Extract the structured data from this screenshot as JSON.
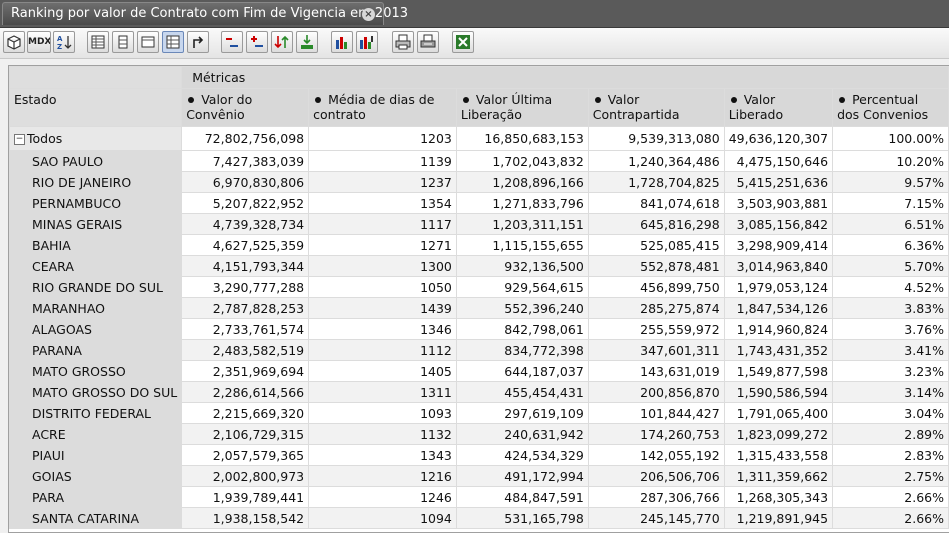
{
  "tab": {
    "title": "Ranking por valor de Contrato com Fim de Vigencia em 2013",
    "close_glyph": "×"
  },
  "toolbar": {
    "buttons": [
      {
        "name": "cube-icon",
        "label": ""
      },
      {
        "name": "mdx-button",
        "label": "MDX"
      },
      {
        "name": "sort-az-icon",
        "label": ""
      },
      {
        "name": "non-empty-icon",
        "label": ""
      },
      {
        "name": "swap-axes-icon",
        "label": ""
      },
      {
        "name": "hide-spans-icon",
        "label": ""
      },
      {
        "name": "show-properties-icon",
        "label": ""
      },
      {
        "name": "drill-through-icon",
        "label": ""
      },
      {
        "name": "drill-member-icon",
        "label": ""
      },
      {
        "name": "drill-position-icon",
        "label": ""
      },
      {
        "name": "drill-replace-icon",
        "label": ""
      },
      {
        "name": "drill-down-icon",
        "label": ""
      },
      {
        "name": "bar-chart-icon",
        "label": ""
      },
      {
        "name": "chart-config-icon",
        "label": ""
      },
      {
        "name": "print-icon",
        "label": ""
      },
      {
        "name": "print-setup-icon",
        "label": ""
      },
      {
        "name": "excel-export-icon",
        "label": ""
      }
    ]
  },
  "grid": {
    "metrics_label": "Métricas",
    "row_header_label": "Estado",
    "columns": [
      "Valor do Convênio",
      "Média de dias de contrato",
      "Valor Última Liberação",
      "Valor Contrapartida",
      "Valor Liberado",
      "Percentual dos Convenios"
    ],
    "total": {
      "label": "Todos",
      "collapse_glyph": "−",
      "values": [
        "72,802,756,098",
        "1203",
        "16,850,683,153",
        "9,539,313,080",
        "49,636,120,307",
        "100.00%"
      ]
    },
    "rows": [
      {
        "label": "SAO PAULO",
        "values": [
          "7,427,383,039",
          "1139",
          "1,702,043,832",
          "1,240,364,486",
          "4,475,150,646",
          "10.20%"
        ]
      },
      {
        "label": "RIO DE JANEIRO",
        "values": [
          "6,970,830,806",
          "1237",
          "1,208,896,166",
          "1,728,704,825",
          "5,415,251,636",
          "9.57%"
        ]
      },
      {
        "label": "PERNAMBUCO",
        "values": [
          "5,207,822,952",
          "1354",
          "1,271,833,796",
          "841,074,618",
          "3,503,903,881",
          "7.15%"
        ]
      },
      {
        "label": "MINAS GERAIS",
        "values": [
          "4,739,328,734",
          "1117",
          "1,203,311,151",
          "645,816,298",
          "3,085,156,842",
          "6.51%"
        ]
      },
      {
        "label": "BAHIA",
        "values": [
          "4,627,525,359",
          "1271",
          "1,115,155,655",
          "525,085,415",
          "3,298,909,414",
          "6.36%"
        ]
      },
      {
        "label": "CEARA",
        "values": [
          "4,151,793,344",
          "1300",
          "932,136,500",
          "552,878,481",
          "3,014,963,840",
          "5.70%"
        ]
      },
      {
        "label": "RIO GRANDE DO SUL",
        "values": [
          "3,290,777,288",
          "1050",
          "929,564,615",
          "456,899,750",
          "1,979,053,124",
          "4.52%"
        ]
      },
      {
        "label": "MARANHAO",
        "values": [
          "2,787,828,253",
          "1439",
          "552,396,240",
          "285,275,874",
          "1,847,534,126",
          "3.83%"
        ]
      },
      {
        "label": "ALAGOAS",
        "values": [
          "2,733,761,574",
          "1346",
          "842,798,061",
          "255,559,972",
          "1,914,960,824",
          "3.76%"
        ]
      },
      {
        "label": "PARANA",
        "values": [
          "2,483,582,519",
          "1112",
          "834,772,398",
          "347,601,311",
          "1,743,431,352",
          "3.41%"
        ]
      },
      {
        "label": "MATO GROSSO",
        "values": [
          "2,351,969,694",
          "1405",
          "644,187,037",
          "143,631,019",
          "1,549,877,598",
          "3.23%"
        ]
      },
      {
        "label": "MATO GROSSO DO SUL",
        "values": [
          "2,286,614,566",
          "1311",
          "455,454,431",
          "200,856,870",
          "1,590,586,594",
          "3.14%"
        ]
      },
      {
        "label": "DISTRITO FEDERAL",
        "values": [
          "2,215,669,320",
          "1093",
          "297,619,109",
          "101,844,427",
          "1,791,065,400",
          "3.04%"
        ]
      },
      {
        "label": "ACRE",
        "values": [
          "2,106,729,315",
          "1132",
          "240,631,942",
          "174,260,753",
          "1,823,099,272",
          "2.89%"
        ]
      },
      {
        "label": "PIAUI",
        "values": [
          "2,057,579,365",
          "1343",
          "424,534,329",
          "142,055,192",
          "1,315,433,558",
          "2.83%"
        ]
      },
      {
        "label": "GOIAS",
        "values": [
          "2,002,800,973",
          "1216",
          "491,172,994",
          "206,506,706",
          "1,311,359,662",
          "2.75%"
        ]
      },
      {
        "label": "PARA",
        "values": [
          "1,939,789,441",
          "1246",
          "484,847,591",
          "287,306,766",
          "1,268,305,343",
          "2.66%"
        ]
      },
      {
        "label": "SANTA CATARINA",
        "values": [
          "1,938,158,542",
          "1094",
          "531,165,798",
          "245,145,770",
          "1,219,891,945",
          "2.66%"
        ]
      }
    ]
  }
}
